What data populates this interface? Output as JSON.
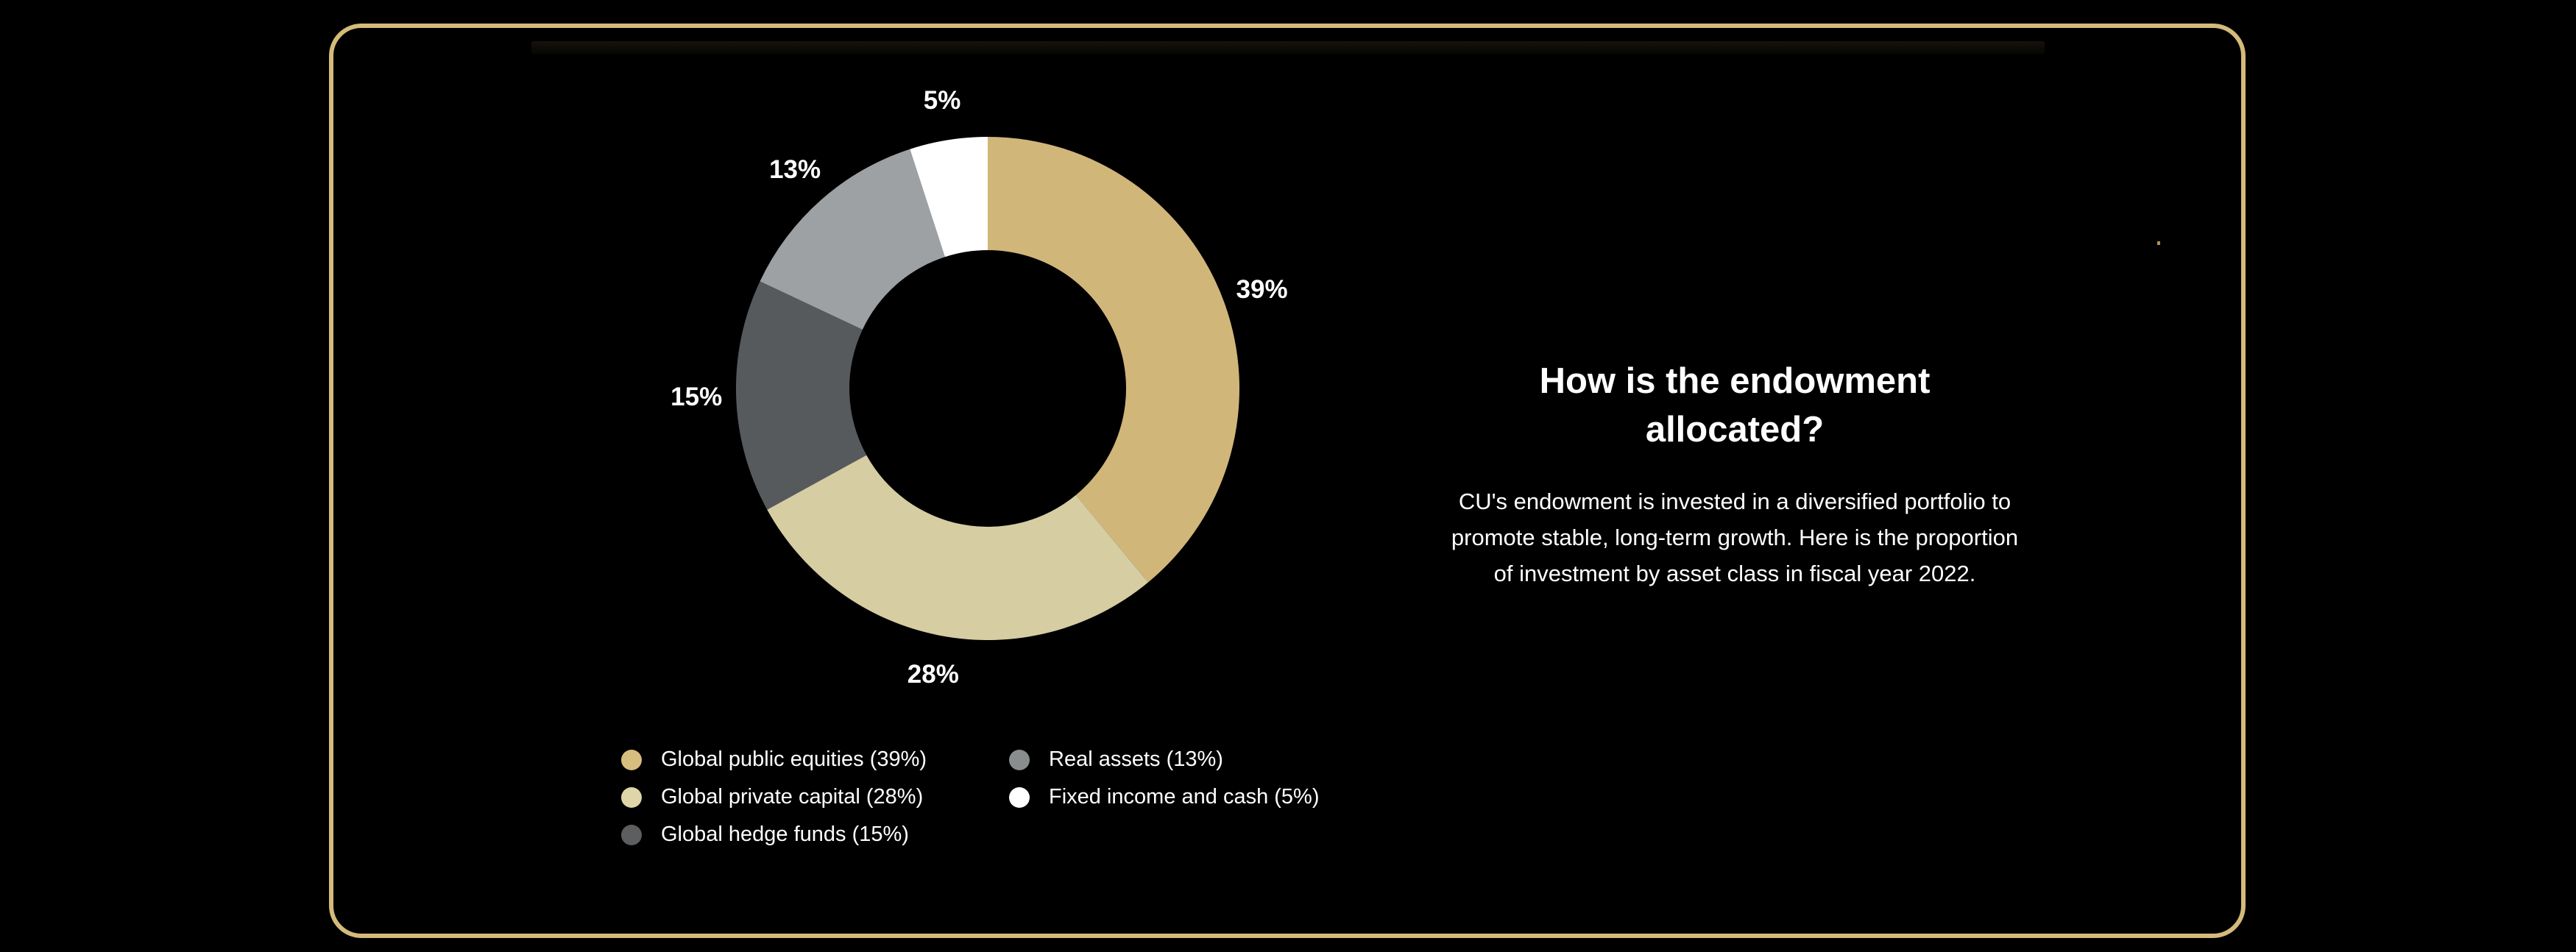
{
  "page": {
    "background_color": "#000000"
  },
  "card": {
    "border_color": "#d4bb7b",
    "background_color": "#000000"
  },
  "panel": {
    "title": "How is the endowment allocated?",
    "body": "CU's endowment is invested in a diversified portfolio to promote stable, long-term growth. Here is the proportion of investment by asset class in fiscal year 2022."
  },
  "chart_data": {
    "type": "pie",
    "subtype": "donut",
    "title": "",
    "start_angle_deg": 0,
    "direction": "clockwise",
    "inner_radius_ratio": 0.55,
    "data_label_color": "#ffffff",
    "slices": [
      {
        "label": "Global public equities",
        "value_pct": 39,
        "data_label": "39%",
        "color": "#d1b67a"
      },
      {
        "label": "Global private capital",
        "value_pct": 28,
        "data_label": "28%",
        "color": "#d6cda3"
      },
      {
        "label": "Global hedge funds",
        "value_pct": 15,
        "data_label": "15%",
        "color": "#575a5d"
      },
      {
        "label": "Real assets",
        "value_pct": 13,
        "data_label": "13%",
        "color": "#9da1a3"
      },
      {
        "label": "Fixed income and cash",
        "value_pct": 5,
        "data_label": "5%",
        "color": "#ffffff"
      }
    ],
    "legend": {
      "position": "bottom-left",
      "columns": [
        [
          {
            "text": "Global public equities (39%)",
            "color": "#d9bd7e"
          },
          {
            "text": "Global private capital (28%)",
            "color": "#ded5a8"
          },
          {
            "text": "Global hedge funds (15%)",
            "color": "#5d5e5f"
          }
        ],
        [
          {
            "text": "Real assets (13%)",
            "color": "#8a8d8e"
          },
          {
            "text": "Fixed income and cash (5%)",
            "color": "#ffffff"
          }
        ]
      ]
    }
  }
}
